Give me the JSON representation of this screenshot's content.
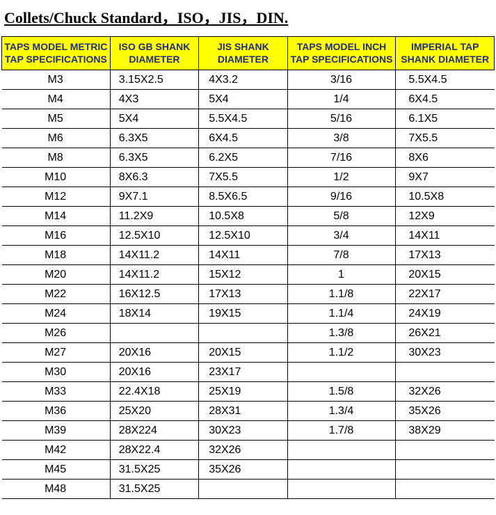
{
  "title_text": "Collets/Chuck Standard，ISO，JIS，DIN.",
  "colors": {
    "header_bg": "#ffff00",
    "header_fg": "#1f2d7a",
    "border": "#000000",
    "body_text": "#000000",
    "page_bg": "#ffffff"
  },
  "fonts": {
    "title_family": "Times New Roman",
    "title_size_pt": 16,
    "title_weight": "bold",
    "title_underline": true,
    "header_size_pt": 10,
    "cell_size_pt": 12,
    "cell_family": "Arial"
  },
  "table": {
    "type": "table",
    "column_widths_pct": [
      22,
      18,
      18,
      22,
      20
    ],
    "column_align": [
      "center",
      "left",
      "left",
      "center",
      "left"
    ],
    "columns": [
      "TAPS MODEL METRIC TAP SPECIFICATIONS",
      "ISO GB SHANK DIAMETER",
      "JIS SHANK DIAMETER",
      "TAPS MODEL INCH TAP SPECIFICATIONS",
      "IMPERIAL TAP SHANK DIAMETER"
    ],
    "rows": [
      [
        "M3",
        "3.15X2.5",
        "4X3.2",
        "3/16",
        "5.5X4.5"
      ],
      [
        "M4",
        "4X3",
        "5X4",
        "1/4",
        "6X4.5"
      ],
      [
        "M5",
        "5X4",
        "5.5X4.5",
        "5/16",
        "6.1X5"
      ],
      [
        "M6",
        "6.3X5",
        "6X4.5",
        "3/8",
        "7X5.5"
      ],
      [
        "M8",
        "6.3X5",
        "6.2X5",
        "7/16",
        "8X6"
      ],
      [
        "M10",
        "8X6.3",
        "7X5.5",
        "1/2",
        "9X7"
      ],
      [
        "M12",
        "9X7.1",
        "8.5X6.5",
        "9/16",
        "10.5X8"
      ],
      [
        "M14",
        "11.2X9",
        "10.5X8",
        "5/8",
        "12X9"
      ],
      [
        "M16",
        "12.5X10",
        "12.5X10",
        "3/4",
        "14X11"
      ],
      [
        "M18",
        "14X11.2",
        "14X11",
        "7/8",
        "17X13"
      ],
      [
        "M20",
        "14X11.2",
        "15X12",
        "1",
        "20X15"
      ],
      [
        "M22",
        "16X12.5",
        "17X13",
        "1.1/8",
        "22X17"
      ],
      [
        "M24",
        "18X14",
        "19X15",
        "1.1/4",
        "24X19"
      ],
      [
        "M26",
        "",
        "",
        "1.3/8",
        "26X21"
      ],
      [
        "M27",
        "20X16",
        "20X15",
        "1.1/2",
        "30X23"
      ],
      [
        "M30",
        "20X16",
        "23X17",
        "",
        ""
      ],
      [
        "M33",
        "22.4X18",
        "25X19",
        "1.5/8",
        "32X26"
      ],
      [
        "M36",
        "25X20",
        "28X31",
        "1.3/4",
        "35X26"
      ],
      [
        "M39",
        "28X224",
        "30X23",
        "1.7/8",
        "38X29"
      ],
      [
        "M42",
        "28X22.4",
        "32X26",
        "",
        ""
      ],
      [
        "M45",
        "31.5X25",
        "35X26",
        "",
        ""
      ],
      [
        "M48",
        "31.5X25",
        "",
        "",
        ""
      ]
    ]
  }
}
